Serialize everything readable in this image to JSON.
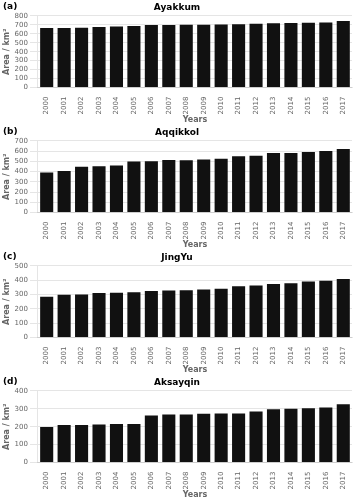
{
  "chart_data": [
    {
      "type": "bar",
      "title": "Ayakkum",
      "annotations": [
        "(a)"
      ],
      "xlabel": "Years",
      "ylabel": "Area / km²",
      "categories": [
        "2000",
        "2001",
        "2002",
        "2003",
        "2004",
        "2005",
        "2006",
        "2007",
        "2008",
        "2009",
        "2010",
        "2011",
        "2012",
        "2013",
        "2014",
        "2015",
        "2016",
        "2017"
      ],
      "values": [
        665,
        663,
        668,
        675,
        682,
        687,
        698,
        697,
        700,
        700,
        702,
        707,
        712,
        716,
        720,
        722,
        724,
        742
      ],
      "color": "#111111",
      "ylim": [
        0,
        800
      ],
      "yticks": [
        0,
        100,
        200,
        300,
        400,
        500,
        600,
        700,
        800
      ],
      "grid": true
    },
    {
      "type": "bar",
      "title": "Aqqikkol",
      "annotations": [
        "(b)"
      ],
      "xlabel": "Years",
      "ylabel": "Area / km²",
      "categories": [
        "2000",
        "2001",
        "2002",
        "2003",
        "2004",
        "2005",
        "2006",
        "2007",
        "2008",
        "2009",
        "2010",
        "2011",
        "2012",
        "2013",
        "2014",
        "2015",
        "2016",
        "2017"
      ],
      "values": [
        390,
        405,
        448,
        453,
        460,
        498,
        500,
        513,
        510,
        517,
        525,
        550,
        555,
        580,
        582,
        590,
        600,
        620
      ],
      "color": "#111111",
      "ylim": [
        0,
        700
      ],
      "yticks": [
        0,
        100,
        200,
        300,
        400,
        500,
        600,
        700
      ],
      "grid": true
    },
    {
      "type": "bar",
      "title": "JingYu",
      "annotations": [
        "(c)"
      ],
      "xlabel": "Years",
      "ylabel": "Area / km²",
      "categories": [
        "2000",
        "2001",
        "2002",
        "2003",
        "2004",
        "2005",
        "2006",
        "2007",
        "2008",
        "2009",
        "2010",
        "2011",
        "2012",
        "2013",
        "2014",
        "2015",
        "2016",
        "2017"
      ],
      "values": [
        285,
        298,
        300,
        310,
        312,
        315,
        325,
        328,
        330,
        335,
        340,
        358,
        363,
        373,
        378,
        390,
        395,
        408
      ],
      "color": "#111111",
      "ylim": [
        0,
        500
      ],
      "yticks": [
        0,
        100,
        200,
        300,
        400,
        500
      ],
      "grid": true
    },
    {
      "type": "bar",
      "title": "Aksayqin",
      "annotations": [
        "(d)"
      ],
      "xlabel": "Years",
      "ylabel": "Area / km²",
      "categories": [
        "2000",
        "2001",
        "2002",
        "2003",
        "2004",
        "2005",
        "2006",
        "2007",
        "2008",
        "2009",
        "2010",
        "2011",
        "2012",
        "2013",
        "2014",
        "2015",
        "2016",
        "2017"
      ],
      "values": [
        198,
        210,
        210,
        212,
        215,
        215,
        262,
        268,
        268,
        272,
        273,
        273,
        285,
        297,
        300,
        303,
        307,
        325
      ],
      "color": "#111111",
      "ylim": [
        0,
        400
      ],
      "yticks": [
        0,
        100,
        200,
        300,
        400
      ],
      "grid": true
    }
  ]
}
